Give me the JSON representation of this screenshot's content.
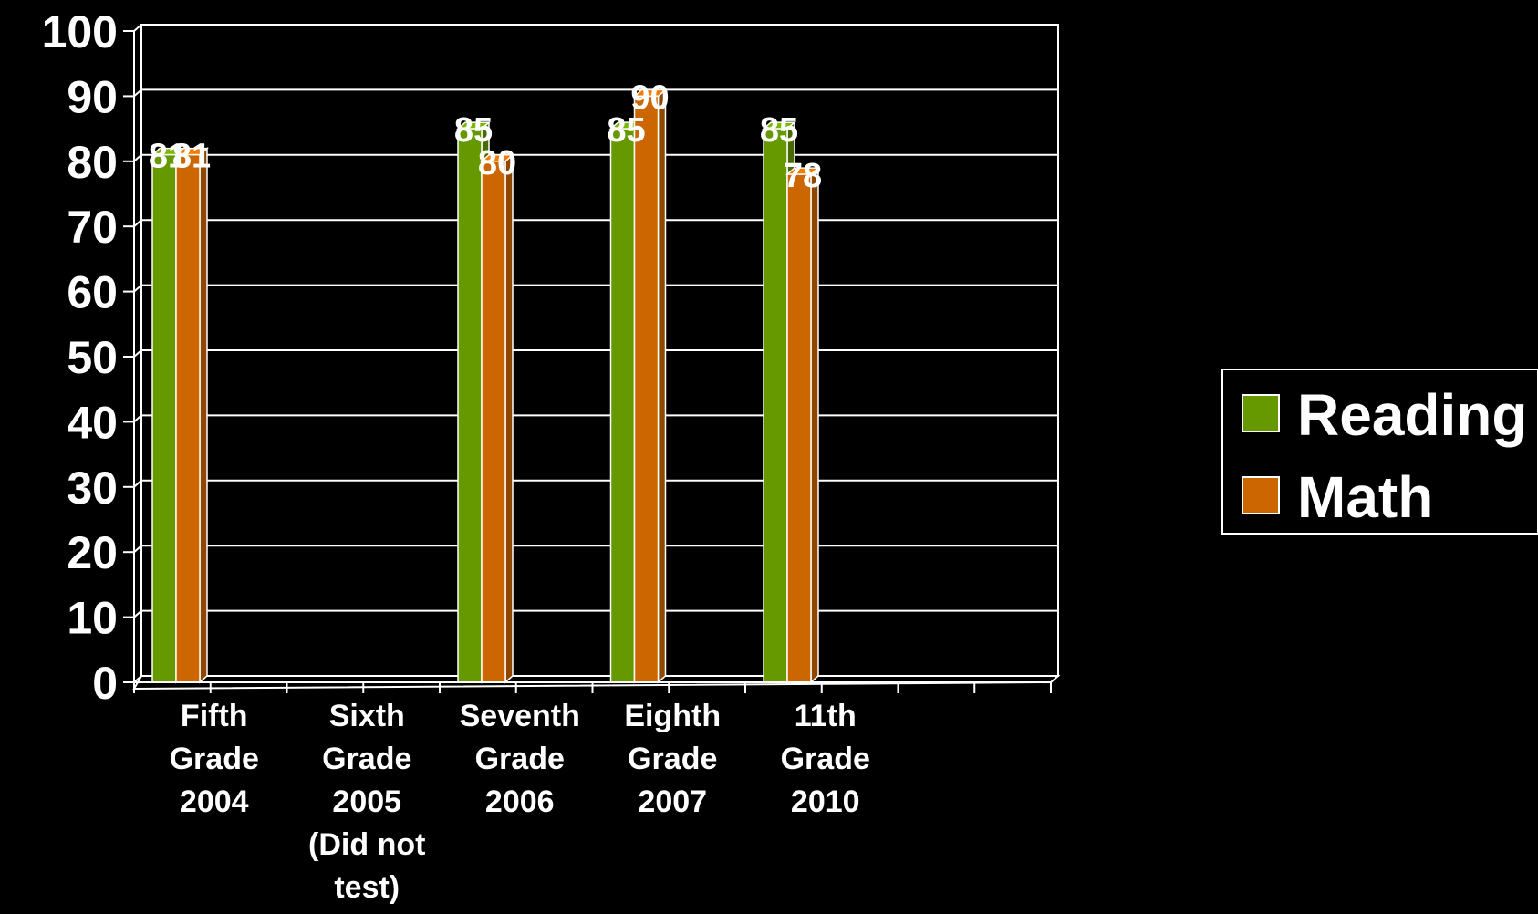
{
  "chart_data": {
    "type": "bar",
    "categories": [
      [
        "Fifth",
        "Grade",
        "2004"
      ],
      [
        "Sixth",
        "Grade",
        "2005",
        "(Did not",
        "test)"
      ],
      [
        "Seventh",
        "Grade",
        "2006"
      ],
      [
        "Eighth",
        "Grade",
        "2007"
      ],
      [
        "11th",
        "Grade",
        "2010"
      ],
      []
    ],
    "series": [
      {
        "name": "Reading",
        "color": "#669900",
        "values": [
          81,
          null,
          85,
          85,
          85,
          null
        ]
      },
      {
        "name": "Math",
        "color": "#CC6600",
        "values": [
          81,
          null,
          80,
          90,
          78,
          null
        ]
      }
    ],
    "ylim": [
      0,
      100
    ],
    "yticks": [
      0,
      10,
      20,
      30,
      40,
      50,
      60,
      70,
      80,
      90,
      100
    ],
    "grid": true,
    "legend_position": "right",
    "title": "",
    "xlabel": "",
    "ylabel": ""
  }
}
